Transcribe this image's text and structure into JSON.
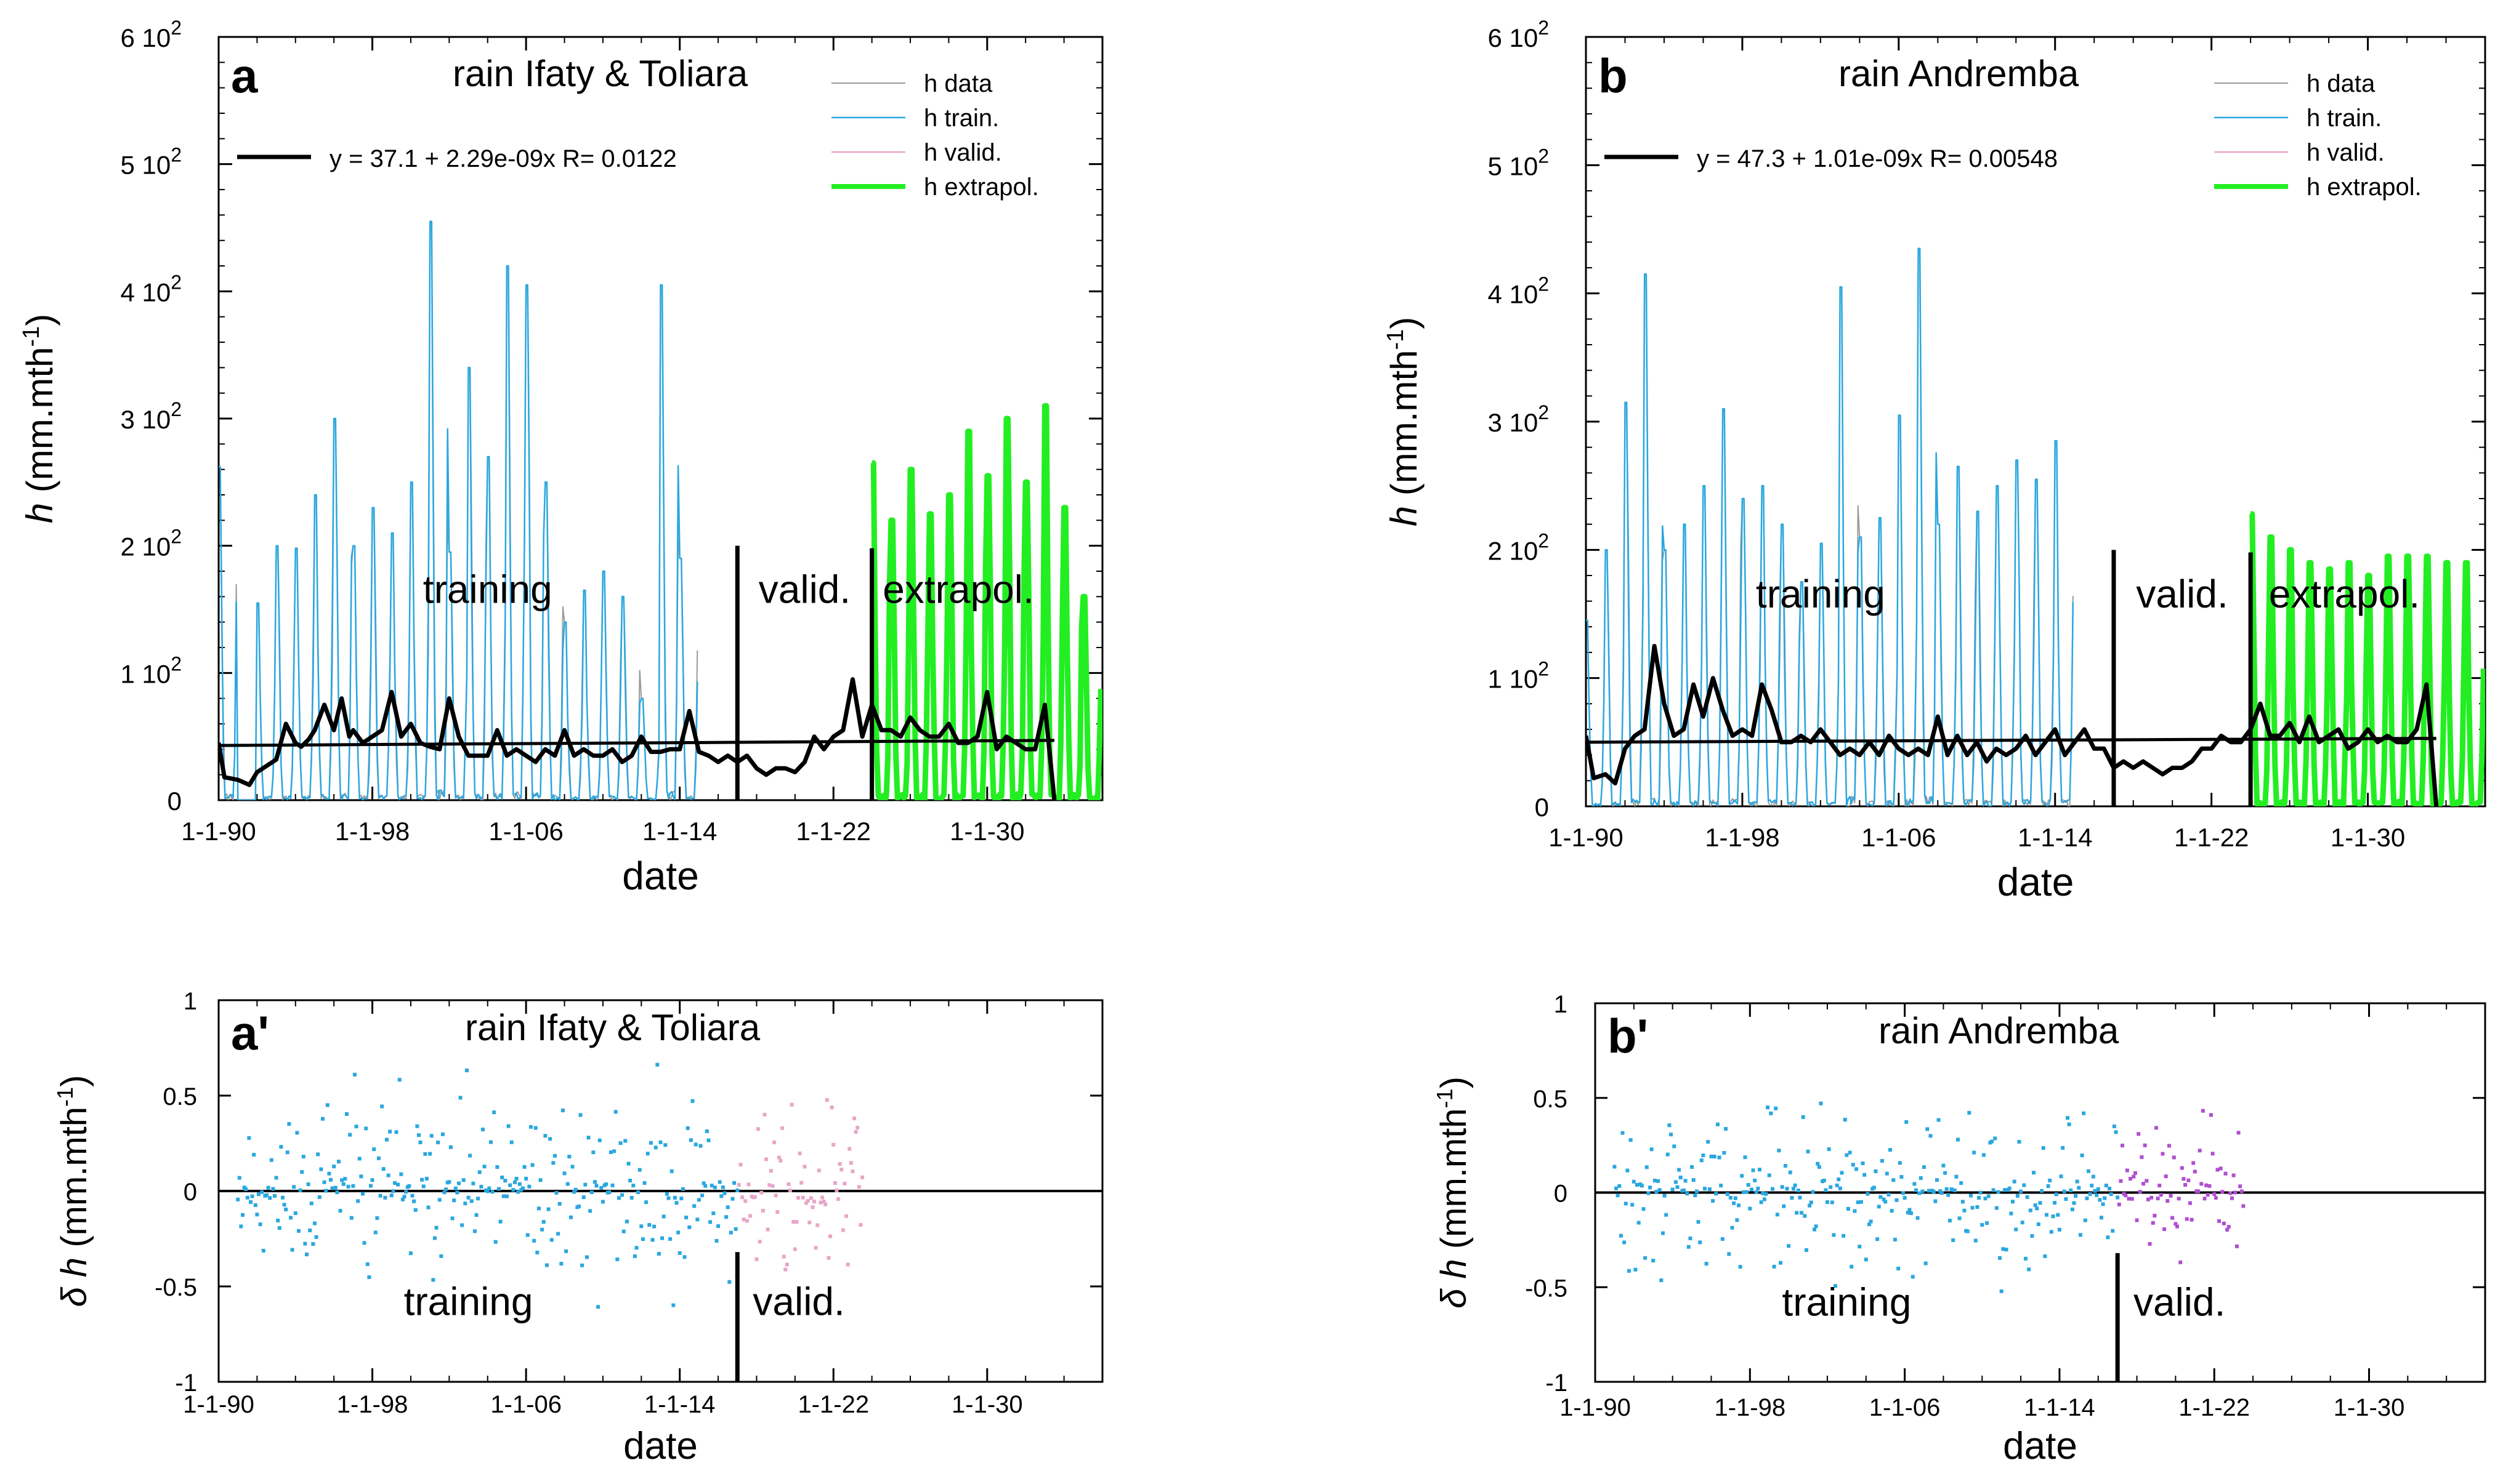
{
  "colors": {
    "data": "#9a9a9a",
    "train": "#2aa7df",
    "valid": "#e8a6c8",
    "valid_dots_b": "#b04fd0",
    "extrapol": "#22ee22",
    "mean": "#000000",
    "label_training": "#1a1ab4",
    "label_valid": "#ee1111",
    "label_extrapol": "#33ee33"
  },
  "chart_data": [
    {
      "id": "a",
      "type": "line",
      "panel_letter": "a",
      "title": "rain Ifaty & Toliara",
      "xlabel": "date",
      "ylabel_main": "h",
      "ylabel_unit": " (mm.mth",
      "ylabel_exp": "-1",
      "ylabel_close": ")",
      "x_ticks": [
        "1-1-90",
        "1-1-98",
        "1-1-06",
        "1-1-14",
        "1-1-22",
        "1-1-30"
      ],
      "xlim": [
        1990,
        2036
      ],
      "ylim": [
        0,
        600
      ],
      "y_ticks": [
        {
          "value": 0,
          "base": "0",
          "exp": ""
        },
        {
          "value": 100,
          "base": "1 10",
          "exp": "2"
        },
        {
          "value": 200,
          "base": "2 10",
          "exp": "2"
        },
        {
          "value": 300,
          "base": "3 10",
          "exp": "2"
        },
        {
          "value": 400,
          "base": "4 10",
          "exp": "2"
        },
        {
          "value": 500,
          "base": "5 10",
          "exp": "2"
        },
        {
          "value": 600,
          "base": "6 10",
          "exp": "2"
        }
      ],
      "legend": [
        "h data",
        "h train.",
        "h valid.",
        "h extrapol."
      ],
      "regression_label": "y = 37.1 + 2.29e-09x   R= 0.0122",
      "regression_line": {
        "x": [
          1990,
          2033.5
        ],
        "y": [
          43,
          47
        ]
      },
      "split_training_end": 2017,
      "split_valid_end": 2024,
      "vlines": [
        {
          "x": 2017,
          "ytop": 200
        },
        {
          "x": 2024,
          "ytop": 198
        }
      ],
      "region_labels": [
        {
          "text": "training",
          "x": 2004,
          "y": 155,
          "color": "label_training"
        },
        {
          "text": "valid.",
          "x": 2020.5,
          "y": 155,
          "color": "label_valid"
        },
        {
          "text": "extrapol.",
          "x": 2028.5,
          "y": 155,
          "color": "label_extrapol"
        }
      ],
      "annual_peaks_observed": [
        262,
        0,
        155,
        200,
        198,
        240,
        300,
        200,
        230,
        210,
        250,
        455,
        195,
        340,
        270,
        420,
        405,
        250,
        140,
        165,
        180,
        160,
        80,
        405,
        190
      ],
      "annual_peaks_extrapol": [
        265,
        220,
        260,
        225,
        240,
        290,
        255,
        300,
        250,
        310,
        230,
        160
      ],
      "obs_start_year": 1990,
      "extrapol_start_year": 2024,
      "moving_mean": {
        "x": [
          1990.0,
          1990.3,
          1991.0,
          1991.6,
          1992.0,
          1993.0,
          1993.5,
          1994.0,
          1994.3,
          1994.7,
          1995.0,
          1995.5,
          1996.0,
          1996.4,
          1996.8,
          1997.0,
          1997.5,
          1998.0,
          1998.5,
          1999.0,
          1999.5,
          2000.0,
          2000.5,
          2001.0,
          2001.5,
          2002.0,
          2002.5,
          2003.0,
          2003.5,
          2004.0,
          2004.5,
          2005.0,
          2005.5,
          2006.0,
          2006.5,
          2007.0,
          2007.5,
          2008.0,
          2008.5,
          2009.0,
          2009.5,
          2010.0,
          2010.5,
          2011.0,
          2011.5,
          2012.0,
          2012.5,
          2013.0,
          2013.5,
          2014.0,
          2014.5,
          2015.0,
          2015.5,
          2016.0,
          2016.5,
          2017.0,
          2017.5,
          2018.0,
          2018.5,
          2019.0,
          2019.5,
          2020.0,
          2020.5,
          2021.0,
          2021.5,
          2022.0,
          2022.5,
          2023.0,
          2023.5,
          2024.0,
          2024.5,
          2025.0,
          2025.5,
          2026.0,
          2026.5,
          2027.0,
          2027.5,
          2028.0,
          2028.5,
          2029.0,
          2029.5,
          2030.0,
          2030.5,
          2031.0,
          2031.5,
          2032.0,
          2032.5,
          2033.0,
          2033.5
        ],
        "y": [
          45,
          18,
          16,
          12,
          22,
          32,
          60,
          45,
          42,
          48,
          55,
          75,
          55,
          80,
          50,
          55,
          45,
          50,
          55,
          85,
          50,
          60,
          45,
          42,
          40,
          80,
          50,
          35,
          35,
          35,
          55,
          35,
          40,
          35,
          30,
          40,
          35,
          55,
          35,
          40,
          35,
          35,
          40,
          30,
          35,
          50,
          38,
          38,
          40,
          40,
          70,
          38,
          35,
          30,
          35,
          30,
          35,
          25,
          20,
          25,
          25,
          22,
          30,
          50,
          40,
          50,
          55,
          95,
          50,
          75,
          55,
          55,
          50,
          65,
          55,
          50,
          50,
          60,
          45,
          45,
          50,
          85,
          40,
          50,
          45,
          40,
          40,
          75,
          0
        ]
      }
    },
    {
      "id": "b",
      "type": "line",
      "panel_letter": "b",
      "title": "rain Andremba",
      "xlabel": "date",
      "ylabel_main": "h",
      "ylabel_unit": " (mm.mth",
      "ylabel_exp": "-1",
      "ylabel_close": ")",
      "x_ticks": [
        "1-1-90",
        "1-1-98",
        "1-1-06",
        "1-1-14",
        "1-1-22",
        "1-1-30"
      ],
      "xlim": [
        1990,
        2036
      ],
      "ylim": [
        0,
        600
      ],
      "y_ticks": [
        {
          "value": 0,
          "base": "0",
          "exp": ""
        },
        {
          "value": 100,
          "base": "1 10",
          "exp": "2"
        },
        {
          "value": 200,
          "base": "2 10",
          "exp": "2"
        },
        {
          "value": 300,
          "base": "3 10",
          "exp": "2"
        },
        {
          "value": 400,
          "base": "4 10",
          "exp": "2"
        },
        {
          "value": 500,
          "base": "5 10",
          "exp": "2"
        },
        {
          "value": 600,
          "base": "6 10",
          "exp": "2"
        }
      ],
      "legend": [
        "h data",
        "h train.",
        "h valid.",
        "h extrapol."
      ],
      "regression_label": "y = 47.3 + 1.01e-09x   R= 0.00548",
      "regression_line": {
        "x": [
          1990,
          2033.5
        ],
        "y": [
          50,
          53
        ]
      },
      "split_training_end": 2017,
      "split_valid_end": 2024,
      "vlines": [
        {
          "x": 2017,
          "ytop": 200
        },
        {
          "x": 2024,
          "ytop": 198
        }
      ],
      "region_labels": [
        {
          "text": "training",
          "x": 2002,
          "y": 155,
          "color": "label_training"
        },
        {
          "text": "valid.",
          "x": 2020.5,
          "y": 155,
          "color": "label_valid"
        },
        {
          "text": "extrapol.",
          "x": 2028.8,
          "y": 155,
          "color": "label_extrapol"
        }
      ],
      "annual_peaks_observed": [
        145,
        200,
        315,
        415,
        200,
        220,
        250,
        310,
        240,
        250,
        220,
        175,
        205,
        405,
        210,
        225,
        305,
        435,
        220,
        265,
        230,
        250,
        270,
        255,
        285
      ],
      "annual_peaks_extrapol": [
        228,
        210,
        200,
        190,
        185,
        190,
        180,
        195,
        195,
        195,
        190,
        190
      ],
      "obs_start_year": 1990,
      "extrapol_start_year": 2024,
      "moving_mean": {
        "x": [
          1990.0,
          1990.4,
          1991.0,
          1991.5,
          1992.0,
          1992.5,
          1993.0,
          1993.5,
          1994.0,
          1994.5,
          1995.0,
          1995.5,
          1996.0,
          1996.5,
          1997.0,
          1997.5,
          1998.0,
          1998.5,
          1999.0,
          1999.5,
          2000.0,
          2000.5,
          2001.0,
          2001.5,
          2002.0,
          2002.5,
          2003.0,
          2003.5,
          2004.0,
          2004.5,
          2005.0,
          2005.5,
          2006.0,
          2006.5,
          2007.0,
          2007.5,
          2008.0,
          2008.5,
          2009.0,
          2009.5,
          2010.0,
          2010.5,
          2011.0,
          2011.5,
          2012.0,
          2012.5,
          2013.0,
          2013.5,
          2014.0,
          2014.5,
          2015.0,
          2015.5,
          2016.0,
          2016.5,
          2017.0,
          2017.5,
          2018.0,
          2018.5,
          2019.0,
          2019.5,
          2020.0,
          2020.5,
          2021.0,
          2021.5,
          2022.0,
          2022.5,
          2023.0,
          2023.5,
          2024.0,
          2024.5,
          2025.0,
          2025.5,
          2026.0,
          2026.5,
          2027.0,
          2027.5,
          2028.0,
          2028.5,
          2029.0,
          2029.5,
          2030.0,
          2030.5,
          2031.0,
          2031.5,
          2032.0,
          2032.5,
          2033.0,
          2033.5
        ],
        "y": [
          55,
          22,
          25,
          18,
          45,
          55,
          60,
          125,
          80,
          55,
          60,
          95,
          70,
          100,
          75,
          55,
          60,
          55,
          95,
          75,
          50,
          50,
          55,
          50,
          60,
          50,
          40,
          45,
          40,
          50,
          40,
          55,
          45,
          40,
          45,
          40,
          70,
          40,
          55,
          40,
          50,
          35,
          45,
          40,
          45,
          55,
          40,
          50,
          60,
          40,
          50,
          60,
          45,
          45,
          30,
          35,
          30,
          35,
          30,
          25,
          30,
          30,
          35,
          45,
          45,
          55,
          50,
          50,
          60,
          80,
          55,
          55,
          65,
          50,
          70,
          50,
          55,
          60,
          45,
          50,
          60,
          50,
          55,
          50,
          50,
          60,
          95,
          0
        ]
      }
    },
    {
      "id": "ap",
      "type": "scatter",
      "panel_letter": "a'",
      "title": "rain Ifaty & Toliara",
      "xlabel": "date",
      "ylabel_main": "δ h",
      "ylabel_unit": " (mm.mth",
      "ylabel_exp": "-1",
      "ylabel_close": ")",
      "x_ticks": [
        "1-1-90",
        "1-1-98",
        "1-1-06",
        "1-1-14",
        "1-1-22",
        "1-1-30"
      ],
      "xlim": [
        1990,
        2036
      ],
      "ylim": [
        -1,
        1
      ],
      "y_ticks_plain": [
        "1",
        "0.5",
        "0",
        "-0.5",
        "-1"
      ],
      "y_tick_values": [
        1,
        0.5,
        0,
        -0.5,
        -1
      ],
      "split_training_end": 2017,
      "valid_end": 2023.5,
      "vline": {
        "x": 2017,
        "ytop": -0.32
      },
      "region_labels": [
        {
          "text": "training",
          "x": 2003,
          "y": -0.65,
          "color": "label_training"
        },
        {
          "text": "valid.",
          "x": 2020.2,
          "y": -0.65,
          "color": "label_valid"
        }
      ],
      "dot_seed": 11,
      "spread": 0.32
    },
    {
      "id": "bp",
      "type": "scatter",
      "panel_letter": "b'",
      "title": "rain Andremba",
      "xlabel": "date",
      "ylabel_main": "δ h",
      "ylabel_unit": " (mm.mth",
      "ylabel_exp": "-1",
      "ylabel_close": ")",
      "x_ticks": [
        "1-1-90",
        "1-1-98",
        "1-1-06",
        "1-1-14",
        "1-1-22",
        "1-1-30"
      ],
      "xlim": [
        1990,
        2036
      ],
      "ylim": [
        -1,
        1
      ],
      "y_ticks_plain": [
        "1",
        "0.5",
        "0",
        "-0.5",
        "-1"
      ],
      "y_tick_values": [
        1,
        0.5,
        0,
        -0.5,
        -1
      ],
      "split_training_end": 2017,
      "valid_end": 2023.5,
      "vline": {
        "x": 2017,
        "ytop": -0.32
      },
      "region_labels": [
        {
          "text": "training",
          "x": 2003,
          "y": -0.65,
          "color": "label_training"
        },
        {
          "text": "valid.",
          "x": 2020.2,
          "y": -0.65,
          "color": "label_valid"
        }
      ],
      "dot_seed": 29,
      "spread": 0.28
    }
  ]
}
